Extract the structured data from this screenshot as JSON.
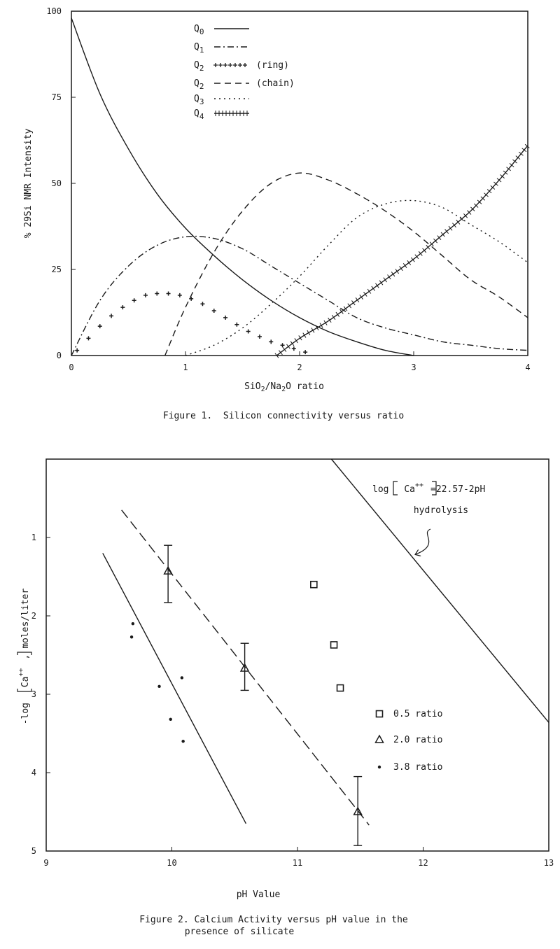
{
  "chart_data": [
    {
      "type": "line",
      "caption": "Figure 1.  Silicon connectivity versus ratio",
      "xlabel": "SiO2/Na2O ratio",
      "ylabel": "% 29Si NMR Intensity",
      "xlim": [
        0,
        4
      ],
      "ylim": [
        0,
        100
      ],
      "xticks": [
        "0",
        "1",
        "2",
        "3",
        "4"
      ],
      "yticks": [
        "0",
        "25",
        "50",
        "75",
        "100"
      ],
      "legend_position": "top-center",
      "series": [
        {
          "name": "Q0",
          "legend_label": "Q0",
          "style": "solid",
          "x": [
            0,
            0.25,
            0.5,
            0.75,
            1.0,
            1.25,
            1.5,
            1.75,
            2.0,
            2.25,
            2.5,
            2.75,
            3.0
          ],
          "y": [
            98,
            76,
            60,
            47,
            37,
            29,
            22,
            16,
            11,
            7,
            4,
            1.5,
            0
          ]
        },
        {
          "name": "Q1",
          "legend_label": "Q1",
          "style": "dashdot",
          "x": [
            0,
            0.25,
            0.5,
            0.75,
            1.0,
            1.25,
            1.5,
            1.75,
            2.0,
            2.25,
            2.5,
            2.75,
            3.0,
            3.25,
            3.5,
            3.75,
            4.0
          ],
          "y": [
            0,
            16,
            26,
            32,
            34.5,
            34,
            31,
            26,
            21,
            16,
            11,
            8,
            6,
            4,
            3,
            2,
            1.5
          ]
        },
        {
          "name": "Q2",
          "legend_label": "Q2",
          "legend_suffix": "(ring)",
          "style": "plus",
          "x": [
            0.05,
            0.15,
            0.25,
            0.35,
            0.45,
            0.55,
            0.65,
            0.75,
            0.85,
            0.95,
            1.05,
            1.15,
            1.25,
            1.35,
            1.45,
            1.55,
            1.65,
            1.75,
            1.85,
            1.95,
            2.05
          ],
          "y": [
            1.5,
            5,
            8.5,
            11.5,
            14,
            16,
            17.5,
            18,
            18,
            17.5,
            16.5,
            15,
            13,
            11,
            9,
            7,
            5.5,
            4,
            3,
            2,
            1
          ]
        },
        {
          "name": "Q2",
          "legend_label": "Q2",
          "legend_suffix": "(chain)",
          "style": "dashed",
          "x": [
            0.82,
            1.0,
            1.25,
            1.5,
            1.75,
            2.0,
            2.25,
            2.5,
            2.75,
            3.0,
            3.25,
            3.5,
            3.75,
            4.0
          ],
          "y": [
            0,
            14,
            30,
            42,
            50,
            53,
            51,
            47,
            42,
            36,
            29,
            22,
            17,
            11
          ]
        },
        {
          "name": "Q3",
          "legend_label": "Q3",
          "style": "dotted",
          "x": [
            1.0,
            1.25,
            1.5,
            1.75,
            2.0,
            2.25,
            2.5,
            2.75,
            3.0,
            3.25,
            3.5,
            3.75,
            4.0
          ],
          "y": [
            0,
            3,
            8,
            15,
            23,
            32,
            40,
            44,
            45,
            43,
            38,
            33,
            27
          ]
        },
        {
          "name": "Q4",
          "legend_label": "Q4",
          "style": "hatched",
          "x": [
            1.8,
            2.0,
            2.25,
            2.5,
            2.75,
            3.0,
            3.25,
            3.5,
            3.75,
            4.0
          ],
          "y": [
            0,
            5,
            10,
            16,
            22,
            28,
            35,
            42,
            51,
            61
          ]
        }
      ]
    },
    {
      "type": "scatter",
      "caption": [
        "Figure 2. Calcium Activity versus pH value in the",
        "presence of silicate"
      ],
      "xlabel": "pH Value",
      "ylabel": "-log [Ca++], moles/liter",
      "xlim": [
        9,
        13
      ],
      "ylim": [
        5,
        0
      ],
      "xticks": [
        "9",
        "10",
        "11",
        "12",
        "13"
      ],
      "yticks": [
        "1",
        "2",
        "3",
        "4",
        "5"
      ],
      "legend_position": "right-center",
      "annotation": {
        "prefix": "log",
        "species": "Ca",
        "charge": "++",
        "equation": "=22.57-2pH",
        "note": "hydrolysis"
      },
      "lines": [
        {
          "name": "hydrolysis",
          "style": "solid",
          "x": [
            11.27,
            13.0
          ],
          "y": [
            0,
            3.36
          ]
        },
        {
          "name": "fit-2.0",
          "style": "dashed",
          "x": [
            9.6,
            11.57
          ],
          "y": [
            0.65,
            4.67
          ]
        },
        {
          "name": "fit-3.8",
          "style": "solid",
          "x": [
            9.45,
            10.59
          ],
          "y": [
            1.2,
            4.65
          ]
        }
      ],
      "series": [
        {
          "name": "0.5 ratio",
          "marker": "square",
          "points": [
            [
              11.13,
              1.6
            ],
            [
              11.29,
              2.37
            ],
            [
              11.34,
              2.92
            ]
          ]
        },
        {
          "name": "2.0 ratio",
          "marker": "triangle",
          "points": [
            [
              9.97,
              1.43
            ],
            [
              10.58,
              2.67
            ],
            [
              11.48,
              4.5
            ]
          ],
          "error": [
            [
              1.1,
              1.83
            ],
            [
              2.35,
              2.95
            ],
            [
              4.05,
              4.93
            ]
          ]
        },
        {
          "name": "3.8 ratio",
          "marker": "dot",
          "points": [
            [
              9.69,
              2.1
            ],
            [
              9.68,
              2.27
            ],
            [
              9.9,
              2.9
            ],
            [
              10.08,
              2.79
            ],
            [
              9.99,
              3.32
            ],
            [
              10.09,
              3.6
            ]
          ]
        }
      ]
    }
  ]
}
